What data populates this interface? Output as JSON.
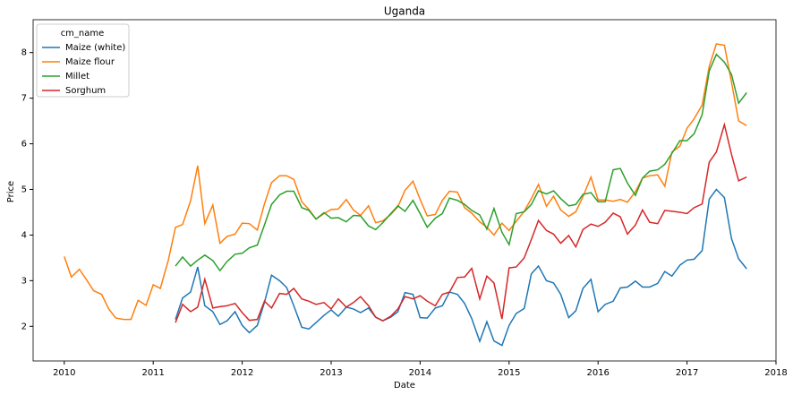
{
  "chart_data": {
    "type": "line",
    "title": "Uganda",
    "x_label": "Date",
    "y_label": "Price",
    "legend_title": "cm_name",
    "legend_position": "upper left",
    "x": [
      2010,
      2010.08,
      2010.17,
      2010.25,
      2010.33,
      2010.42,
      2010.5,
      2010.58,
      2010.67,
      2010.75,
      2010.83,
      2010.92,
      2011,
      2011.08,
      2011.17,
      2011.25,
      2011.33,
      2011.42,
      2011.5,
      2011.58,
      2011.67,
      2011.75,
      2011.83,
      2011.92,
      2012,
      2012.08,
      2012.17,
      2012.25,
      2012.33,
      2012.42,
      2012.5,
      2012.58,
      2012.67,
      2012.75,
      2012.83,
      2012.92,
      2013,
      2013.08,
      2013.17,
      2013.25,
      2013.33,
      2013.42,
      2013.5,
      2013.58,
      2013.67,
      2013.75,
      2013.83,
      2013.92,
      2014,
      2014.08,
      2014.17,
      2014.25,
      2014.33,
      2014.42,
      2014.5,
      2014.58,
      2014.67,
      2014.75,
      2014.83,
      2014.92,
      2015,
      2015.08,
      2015.17,
      2015.25,
      2015.33,
      2015.42,
      2015.5,
      2015.58,
      2015.67,
      2015.75,
      2015.83,
      2015.92,
      2016,
      2016.08,
      2016.17,
      2016.25,
      2016.33,
      2016.42,
      2016.5,
      2016.58,
      2016.67,
      2016.75,
      2016.83,
      2016.92,
      2017,
      2017.08,
      2017.17,
      2017.25,
      2017.33,
      2017.42,
      2017.5,
      2017.58,
      2017.67
    ],
    "series": [
      {
        "name": "Maize (white)",
        "color": "#1f77b4",
        "values": [
          null,
          null,
          null,
          null,
          null,
          null,
          null,
          null,
          null,
          null,
          null,
          null,
          null,
          null,
          null,
          2.15,
          2.62,
          2.75,
          3.3,
          2.45,
          2.32,
          2.04,
          2.12,
          2.32,
          2.02,
          1.86,
          2.02,
          2.52,
          3.12,
          3.0,
          2.85,
          2.45,
          1.98,
          1.94,
          2.08,
          2.24,
          2.36,
          2.22,
          2.42,
          2.38,
          2.3,
          2.4,
          2.2,
          2.12,
          2.2,
          2.32,
          2.74,
          2.7,
          2.19,
          2.18,
          2.4,
          2.45,
          2.75,
          2.7,
          2.5,
          2.17,
          1.67,
          2.1,
          1.68,
          1.58,
          2.02,
          2.28,
          2.39,
          3.15,
          3.32,
          3.0,
          2.95,
          2.7,
          2.19,
          2.34,
          2.83,
          3.03,
          2.32,
          2.48,
          2.55,
          2.84,
          2.86,
          2.99,
          2.86,
          2.86,
          2.94,
          3.2,
          3.1,
          3.34,
          3.45,
          3.47,
          3.66,
          4.79,
          5.0,
          4.82,
          3.92,
          3.48,
          3.26
        ]
      },
      {
        "name": "Maize flour",
        "color": "#ff7f0e",
        "values": [
          3.53,
          3.08,
          3.25,
          3.02,
          2.78,
          2.7,
          2.38,
          2.18,
          2.15,
          2.15,
          2.57,
          2.46,
          2.91,
          2.83,
          3.45,
          4.17,
          4.23,
          4.75,
          5.52,
          4.25,
          4.66,
          3.82,
          3.97,
          4.02,
          4.26,
          4.25,
          4.11,
          4.68,
          5.15,
          5.3,
          5.3,
          5.22,
          4.73,
          4.56,
          4.35,
          4.47,
          4.56,
          4.57,
          4.78,
          4.55,
          4.43,
          4.64,
          4.27,
          4.31,
          4.45,
          4.62,
          4.98,
          5.18,
          4.78,
          4.42,
          4.45,
          4.76,
          4.96,
          4.94,
          4.6,
          4.48,
          4.29,
          4.17,
          4.0,
          4.26,
          4.1,
          4.3,
          4.52,
          4.8,
          5.11,
          4.63,
          4.85,
          4.55,
          4.41,
          4.51,
          4.84,
          5.27,
          4.77,
          4.77,
          4.74,
          4.78,
          4.72,
          4.95,
          5.25,
          5.3,
          5.32,
          5.07,
          5.82,
          5.95,
          6.34,
          6.55,
          6.85,
          7.7,
          8.19,
          8.16,
          7.35,
          6.5,
          6.4
        ]
      },
      {
        "name": "Millet",
        "color": "#2ca02c",
        "values": [
          null,
          null,
          null,
          null,
          null,
          null,
          null,
          null,
          null,
          null,
          null,
          null,
          null,
          null,
          null,
          3.32,
          3.52,
          3.32,
          3.45,
          3.56,
          3.44,
          3.22,
          3.42,
          3.58,
          3.6,
          3.72,
          3.78,
          4.22,
          4.67,
          4.88,
          4.96,
          4.96,
          4.6,
          4.54,
          4.35,
          4.49,
          4.37,
          4.38,
          4.29,
          4.43,
          4.42,
          4.2,
          4.12,
          4.27,
          4.47,
          4.64,
          4.52,
          4.76,
          4.47,
          4.17,
          4.37,
          4.47,
          4.81,
          4.76,
          4.67,
          4.54,
          4.44,
          4.13,
          4.58,
          4.06,
          3.79,
          4.47,
          4.51,
          4.67,
          4.97,
          4.9,
          4.97,
          4.8,
          4.64,
          4.67,
          4.89,
          4.93,
          4.73,
          4.73,
          5.43,
          5.46,
          5.14,
          4.87,
          5.25,
          5.4,
          5.43,
          5.55,
          5.79,
          6.07,
          6.07,
          6.22,
          6.64,
          7.6,
          7.96,
          7.79,
          7.52,
          6.89,
          7.12
        ]
      },
      {
        "name": "Sorghum",
        "color": "#d62728",
        "values": [
          null,
          null,
          null,
          null,
          null,
          null,
          null,
          null,
          null,
          null,
          null,
          null,
          null,
          null,
          null,
          2.08,
          2.48,
          2.32,
          2.42,
          3.03,
          2.4,
          2.43,
          2.45,
          2.5,
          2.3,
          2.13,
          2.15,
          2.55,
          2.4,
          2.72,
          2.7,
          2.83,
          2.6,
          2.55,
          2.48,
          2.52,
          2.38,
          2.6,
          2.42,
          2.52,
          2.65,
          2.45,
          2.2,
          2.12,
          2.22,
          2.38,
          2.65,
          2.6,
          2.67,
          2.55,
          2.45,
          2.7,
          2.75,
          3.07,
          3.08,
          3.27,
          2.6,
          3.1,
          2.95,
          2.16,
          3.28,
          3.3,
          3.5,
          3.9,
          4.32,
          4.1,
          4.02,
          3.82,
          3.99,
          3.74,
          4.12,
          4.24,
          4.19,
          4.28,
          4.48,
          4.4,
          4.02,
          4.22,
          4.55,
          4.28,
          4.25,
          4.54,
          4.52,
          4.5,
          4.47,
          4.6,
          4.68,
          5.6,
          5.82,
          6.42,
          5.77,
          5.19,
          5.27
        ]
      }
    ],
    "xlim": [
      2009.65,
      2018
    ],
    "xticks": [
      2010,
      2011,
      2012,
      2013,
      2014,
      2015,
      2016,
      2017,
      2018
    ],
    "ylim": [
      1.24,
      8.72
    ],
    "yticks": [
      2,
      3,
      4,
      5,
      6,
      7,
      8
    ],
    "grid": false
  }
}
